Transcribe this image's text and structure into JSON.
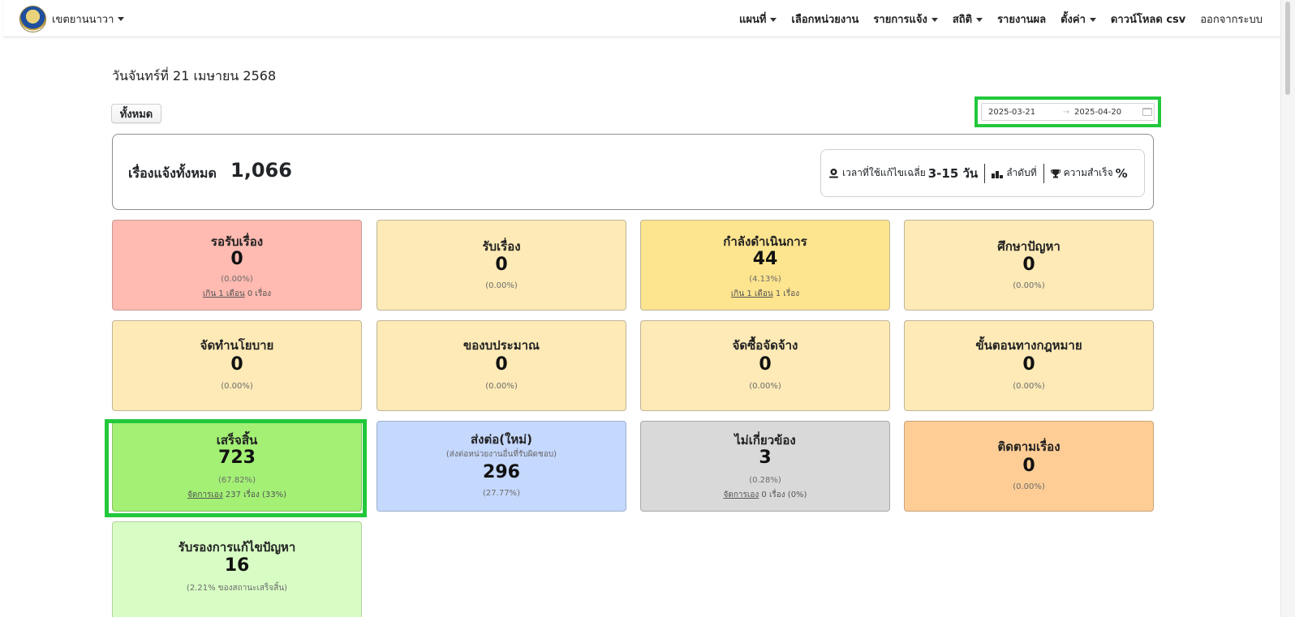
{
  "nav": {
    "brand": "เขตยานนาวา",
    "items": [
      {
        "label": "แผนที่",
        "dropdown": true
      },
      {
        "label": "เลือกหน่วยงาน",
        "dropdown": false
      },
      {
        "label": "รายการแจ้ง",
        "dropdown": true
      },
      {
        "label": "สถิติ",
        "dropdown": true
      },
      {
        "label": "รายงานผล",
        "dropdown": false
      },
      {
        "label": "ตั้งค่า",
        "dropdown": true
      },
      {
        "label": "ดาวน์โหลด csv",
        "dropdown": false
      },
      {
        "label": "ออกจากระบบ",
        "dropdown": false
      }
    ]
  },
  "header": {
    "date": "วันจันทร์ที่ 21 เมษายน 2568",
    "all_button": "ทั้งหมด",
    "date_start": "2025-03-21",
    "date_end": "2025-04-20",
    "arrow": "→"
  },
  "summary": {
    "label": "เรื่องแจ้งทั้งหมด",
    "total": "1,066",
    "avg_time_label": "เวลาที่ใช้แก้ไขเฉลี่ย",
    "avg_time_value": "3-15 วัน",
    "rank_label": "ลำดับที่",
    "success_label": "ความสำเร็จ",
    "success_value": "%"
  },
  "cards": {
    "waiting": {
      "title": "รอรับเรื่อง",
      "value": "0",
      "pct": "(0.00%)",
      "link": "เกิน 1 เดือน",
      "rest": " 0 เรื่อง"
    },
    "received": {
      "title": "รับเรื่อง",
      "value": "0",
      "pct": "(0.00%)"
    },
    "in_progress": {
      "title": "กำลังดำเนินการ",
      "value": "44",
      "pct": "(4.13%)",
      "link": "เกิน 1 เดือน",
      "rest": " 1 เรื่อง"
    },
    "study": {
      "title": "ศึกษาปัญหา",
      "value": "0",
      "pct": "(0.00%)"
    },
    "policy": {
      "title": "จัดทำนโยบาย",
      "value": "0",
      "pct": "(0.00%)"
    },
    "budget": {
      "title": "ของบประมาณ",
      "value": "0",
      "pct": "(0.00%)"
    },
    "procure": {
      "title": "จัดซื้อจัดจ้าง",
      "value": "0",
      "pct": "(0.00%)"
    },
    "legal": {
      "title": "ขั้นตอนทางกฎหมาย",
      "value": "0",
      "pct": "(0.00%)"
    },
    "done": {
      "title": "เสร็จสิ้น",
      "value": "723",
      "pct": "(67.82%)",
      "link": "จัดการเอง",
      "rest": " 237 เรื่อง (33%)"
    },
    "forwarded": {
      "title": "ส่งต่อ(ใหม่)",
      "note": "(ส่งต่อหน่วยงานอื่นที่รับผิดชอบ)",
      "value": "296",
      "pct": "(27.77%)"
    },
    "unrelated": {
      "title": "ไม่เกี่ยวข้อง",
      "value": "3",
      "pct": "(0.28%)",
      "link": "จัดการเอง",
      "rest": " 0 เรื่อง (0%)"
    },
    "follow": {
      "title": "ติดตามเรื่อง",
      "value": "0",
      "pct": "(0.00%)"
    },
    "certified": {
      "title": "รับรองการแก้ไขปัญหา",
      "value": "16",
      "pct": "(2.21% ของสถานะเสร็จสิ้น)"
    }
  },
  "colors": {
    "highlight": "#22c83b",
    "waiting": "#ffbab1",
    "yellow": "#fdeab6",
    "in_progress": "#fde48e",
    "done": "#a3f075",
    "forwarded": "#c5d8fd",
    "unrelated": "#d9d9d9",
    "follow": "#fecd95",
    "certified": "#d8fdc4"
  },
  "icons": [
    "caret-down-icon",
    "map-pin-icon",
    "podium-icon",
    "trophy-icon",
    "calendar-icon",
    "arrow-right-icon"
  ]
}
